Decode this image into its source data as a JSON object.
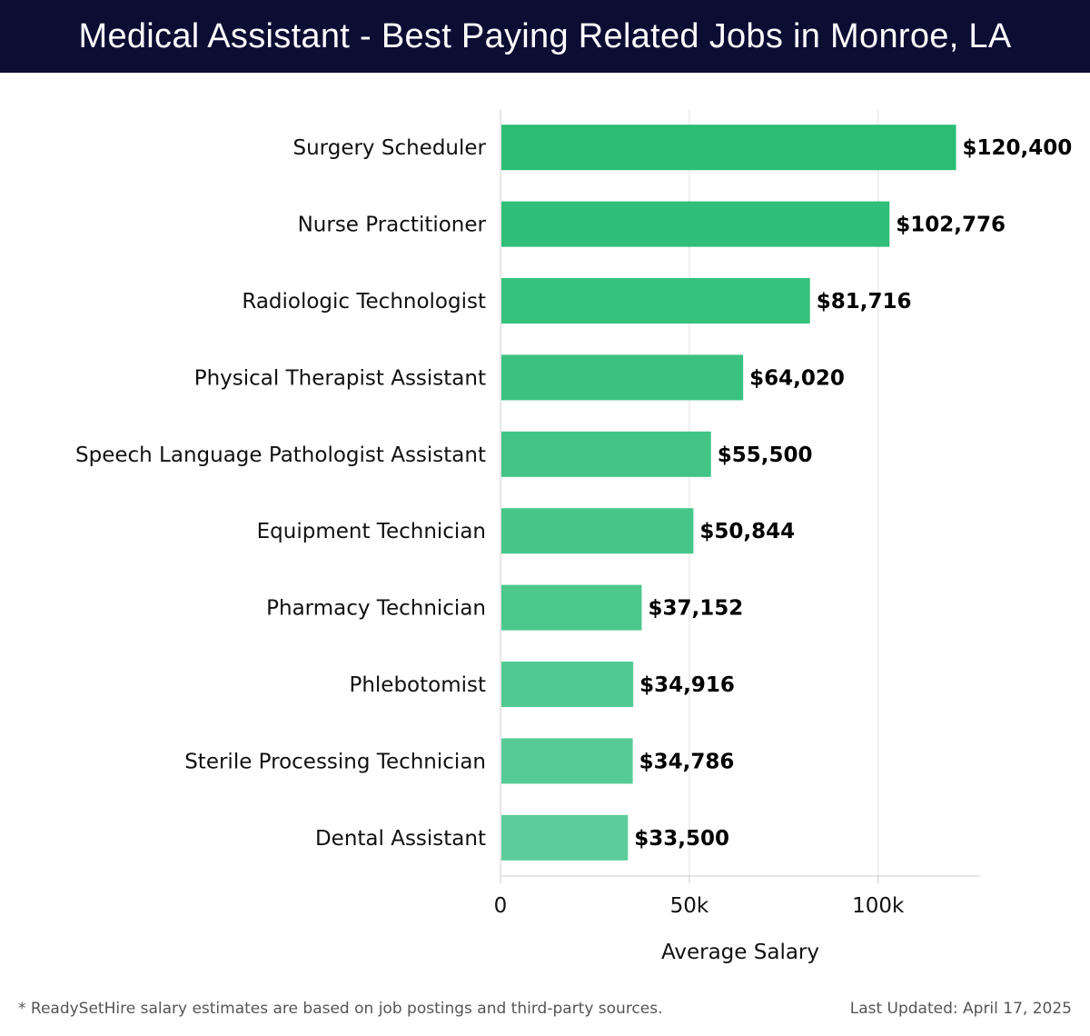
{
  "header": {
    "title": "Medical Assistant - Best Paying Related Jobs in Monroe, LA"
  },
  "chart_data": {
    "type": "bar",
    "orientation": "horizontal",
    "categories": [
      "Surgery Scheduler",
      "Nurse Practitioner",
      "Radiologic Technologist",
      "Physical Therapist Assistant",
      "Speech Language Pathologist Assistant",
      "Equipment Technician",
      "Pharmacy Technician",
      "Phlebotomist",
      "Sterile Processing Technician",
      "Dental Assistant"
    ],
    "values": [
      120400,
      102776,
      81716,
      64020,
      55500,
      50844,
      37152,
      34916,
      34786,
      33500
    ],
    "data_labels": [
      "$120,400",
      "$102,776",
      "$81,716",
      "$64,020",
      "$55,500",
      "$50,844",
      "$37,152",
      "$34,916",
      "$34,786",
      "$33,500"
    ],
    "xlabel": "Average Salary",
    "ylabel": "",
    "xlim": [
      0,
      127000
    ],
    "x_ticks": [
      0,
      50000,
      100000
    ],
    "x_tick_labels": [
      "0",
      "50k",
      "100k"
    ],
    "grid": "vertical",
    "legend": "none",
    "colors": {
      "bar_top": "#2bbd74",
      "bar_bottom": "#5ccd9a",
      "grid": "#e2e2e2",
      "axis": "#cccccc"
    }
  },
  "footer": {
    "note": "* ReadySetHire salary estimates are based on job postings and third-party sources.",
    "last_updated": "Last Updated: April 17, 2025"
  }
}
